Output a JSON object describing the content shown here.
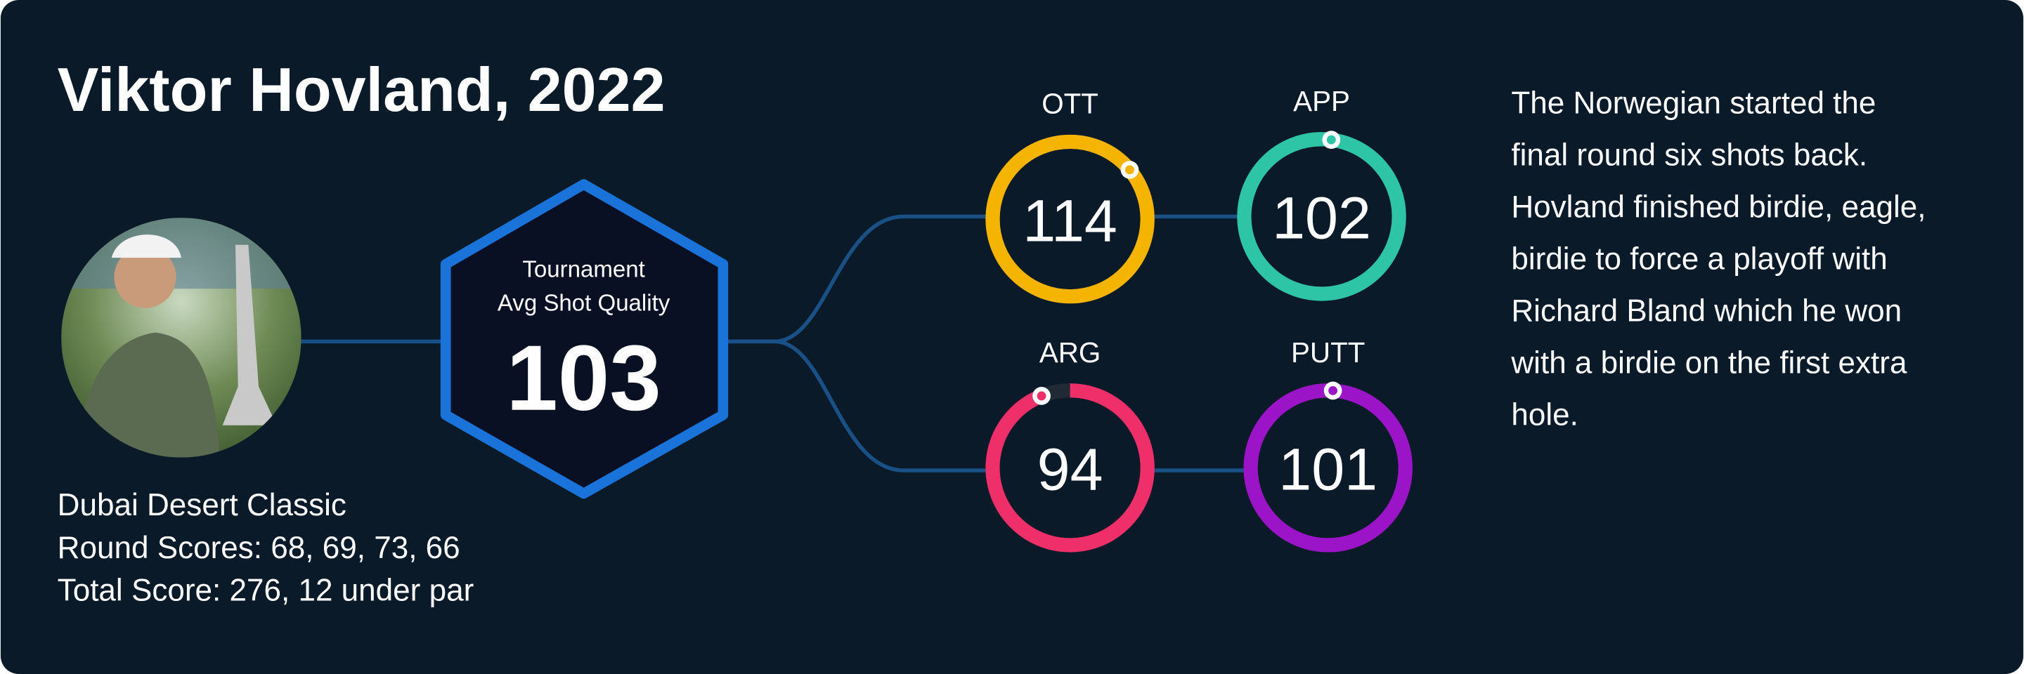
{
  "header": {
    "title": "Viktor Hovland, 2022"
  },
  "event": {
    "lines": [
      "Dubai Desert Classic",
      "Round Scores: 68, 69, 73, 66",
      "Total Score: 276, 12 under par"
    ]
  },
  "summary": {
    "label_lines": [
      "Tournament",
      "Avg Shot Quality"
    ],
    "value": 103
  },
  "metrics": [
    {
      "label": "OTT",
      "value": 114,
      "color": "#f5b400"
    },
    {
      "label": "APP",
      "value": 102,
      "color": "#2ec4a6"
    },
    {
      "label": "ARG",
      "value": 94,
      "color": "#ef2f6a"
    },
    {
      "label": "PUTT",
      "value": 101,
      "color": "#9b14c8"
    }
  ],
  "description": {
    "lines": [
      "The Norwegian started the",
      "final round six shots back.",
      "Hovland finished birdie, eagle,",
      "birdie to force a playoff with",
      "Richard Bland which he won",
      "with a birdie on the first extra",
      "hole."
    ]
  }
}
